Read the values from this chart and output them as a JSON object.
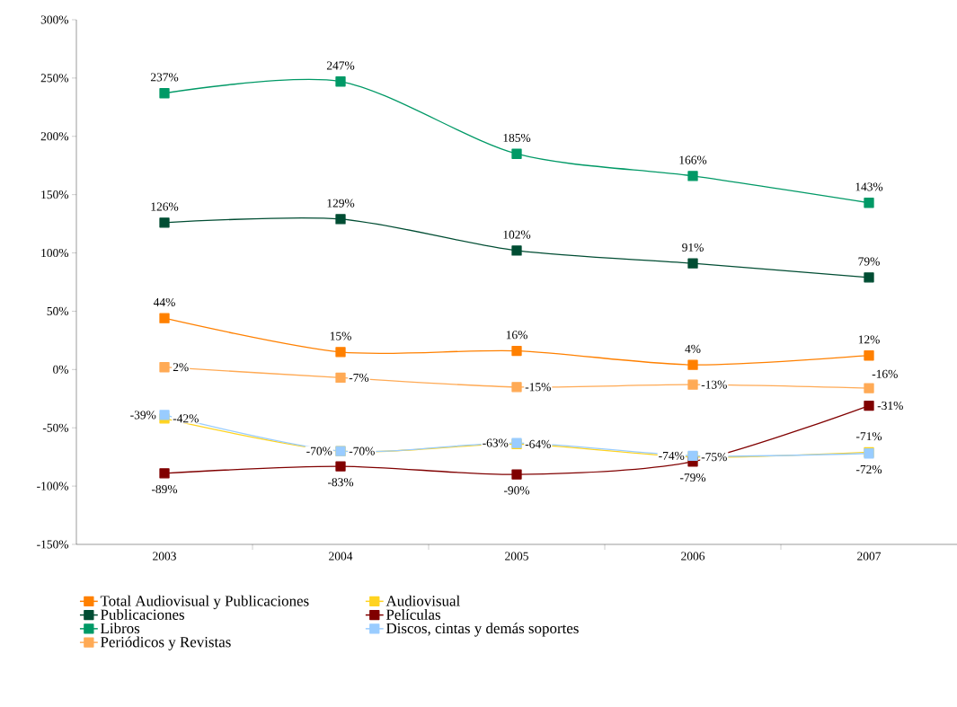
{
  "chart_data": {
    "type": "line",
    "categories": [
      "2003",
      "2004",
      "2005",
      "2006",
      "2007"
    ],
    "series": [
      {
        "name": "Total Audiovisual y Publicaciones",
        "color": "#ff8000",
        "values": [
          44,
          15,
          16,
          4,
          12
        ],
        "value_labels": [
          "44%",
          "15%",
          "16%",
          "4%",
          "12%"
        ]
      },
      {
        "name": "Audiovisual",
        "color": "#ffd320",
        "values": [
          -42,
          -70,
          -64,
          -75,
          -71
        ],
        "value_labels": [
          "-42%",
          "-70%",
          "-64%",
          "-75%",
          "-71%"
        ]
      },
      {
        "name": "Publicaciones",
        "color": "#004d33",
        "values": [
          126,
          129,
          102,
          91,
          79
        ],
        "value_labels": [
          "126%",
          "129%",
          "102%",
          "91%",
          "79%"
        ]
      },
      {
        "name": "Películas",
        "color": "#800000",
        "values": [
          -89,
          -83,
          -90,
          -79,
          -31
        ],
        "value_labels": [
          "-89%",
          "-83%",
          "-90%",
          "-79%",
          "-31%"
        ]
      },
      {
        "name": "Libros",
        "color": "#009966",
        "values": [
          237,
          247,
          185,
          166,
          143
        ],
        "value_labels": [
          "237%",
          "247%",
          "185%",
          "166%",
          "143%"
        ]
      },
      {
        "name": "Discos, cintas y demás soportes",
        "color": "#99ccff",
        "values": [
          -39,
          -70,
          -63,
          -74,
          -72
        ],
        "value_labels": [
          "-39%",
          "-70%",
          "-63%",
          "-74%",
          "-72%"
        ]
      },
      {
        "name": "Periódicos y Revistas",
        "color": "#ffaa55",
        "values": [
          2,
          -7,
          -15,
          -13,
          -16
        ],
        "value_labels": [
          "2%",
          "-7%",
          "-15%",
          "-13%",
          "-16%"
        ]
      }
    ],
    "ylim": [
      -150,
      300
    ],
    "yticks": [
      {
        "value": -150,
        "label": "-150%"
      },
      {
        "value": -100,
        "label": "-100%"
      },
      {
        "value": -50,
        "label": "-50%"
      },
      {
        "value": 0,
        "label": "0%"
      },
      {
        "value": 50,
        "label": "50%"
      },
      {
        "value": 100,
        "label": "100%"
      },
      {
        "value": 150,
        "label": "150%"
      },
      {
        "value": 200,
        "label": "200%"
      },
      {
        "value": 250,
        "label": "250%"
      },
      {
        "value": 300,
        "label": "300%"
      }
    ],
    "marker": "square",
    "line_style": "solid",
    "grid": false,
    "legend": "bottom"
  }
}
